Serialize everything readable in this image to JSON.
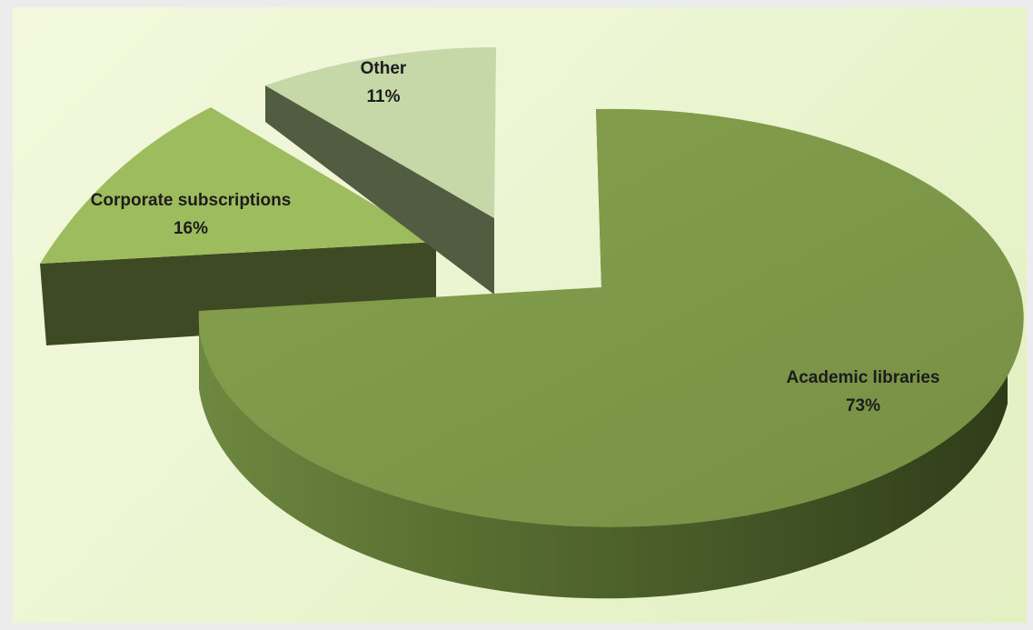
{
  "chart_data": {
    "type": "pie",
    "title": "",
    "style": "3d-exploded",
    "legend": "none",
    "slices": [
      {
        "label": "Academic libraries",
        "value": 73,
        "value_label": "73%",
        "color": "#7d9a48"
      },
      {
        "label": "Corporate subscriptions",
        "value": 16,
        "value_label": "16%",
        "color": "#9dbc5e"
      },
      {
        "label": "Other",
        "value": 11,
        "value_label": "11%",
        "color": "#c6d7a8"
      }
    ]
  }
}
